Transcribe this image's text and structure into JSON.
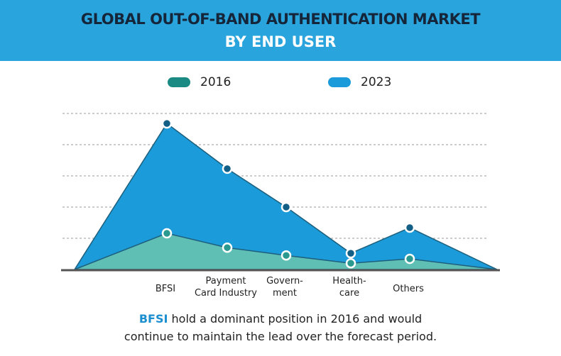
{
  "header": {
    "title_line1": "GLOBAL OUT-OF-BAND AUTHENTICATION MARKET",
    "title_line2": "BY END USER",
    "color": "#29a4dd"
  },
  "chart_data": {
    "type": "area",
    "title": "GLOBAL OUT-OF-BAND AUTHENTICATION MARKET BY END USER",
    "categories": [
      "BFSI",
      "Payment Card Industry",
      "Government",
      "Healthcare",
      "Others"
    ],
    "category_labels": [
      [
        "BFSI"
      ],
      [
        "Payment",
        "Card Industry"
      ],
      [
        "Govern-",
        "ment"
      ],
      [
        "Health-",
        "care"
      ],
      [
        "Others"
      ]
    ],
    "series": [
      {
        "name": "2016",
        "values": [
          1.16,
          0.7,
          0.45,
          0.2,
          0.34
        ],
        "color": "#5fbfb5",
        "legend_color": "#1a8a82"
      },
      {
        "name": "2023",
        "values": [
          4.68,
          3.23,
          2.0,
          0.52,
          1.34
        ],
        "color": "#1b9bd9",
        "legend_color": "#1b9bd9"
      }
    ],
    "ylim": [
      0,
      5
    ],
    "grid": true,
    "legend_position": "top",
    "xlabel": "",
    "ylabel": ""
  },
  "caption": {
    "highlight": "BFSI",
    "text": " hold a dominant position in 2016 and would continue to maintain the lead over the forecast period."
  }
}
